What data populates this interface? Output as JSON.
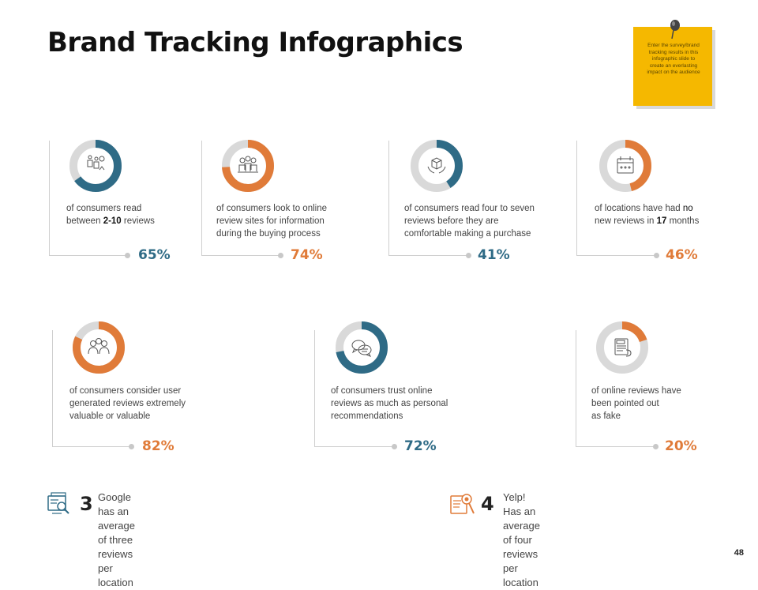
{
  "title": "Brand Tracking Infographics",
  "note": {
    "text": "Enter the survey/brand tracking results in this infographic slide to create an everlasting impact on the audience"
  },
  "colors": {
    "blue": "#2f6b86",
    "orange": "#e07b39",
    "track": "#d9d9d9"
  },
  "stats": [
    {
      "percent": "65%",
      "value": 65,
      "color": "blue",
      "icon": "people-review-icon",
      "lines": [
        [
          "of consumers read",
          ""
        ],
        [
          "between ",
          "2-10",
          " reviews"
        ]
      ]
    },
    {
      "percent": "74%",
      "value": 74,
      "color": "orange",
      "icon": "group-meeting-icon",
      "lines": [
        "of consumers look to online",
        "review  sites for information",
        "during the buying process"
      ]
    },
    {
      "percent": "41%",
      "value": 41,
      "color": "blue",
      "icon": "box-hands-icon",
      "lines": [
        "of consumers read four to seven",
        "reviews  before they are",
        "comfortable  making a purchase"
      ]
    },
    {
      "percent": "46%",
      "value": 46,
      "color": "orange",
      "icon": "calendar-icon",
      "lines": [
        [
          "of locations have had ",
          "no"
        ],
        [
          "new reviews  in ",
          "17",
          " months"
        ]
      ]
    },
    {
      "percent": "82%",
      "value": 82,
      "color": "orange",
      "icon": "users-group-icon",
      "lines": [
        "of consumers consider user",
        "generated reviews  extremely",
        "valuable  or valuable"
      ]
    },
    {
      "percent": "72%",
      "value": 72,
      "color": "blue",
      "icon": "chat-bubbles-icon",
      "lines": [
        "of consumers trust online",
        "reviews  as much as personal",
        "recommendations"
      ]
    },
    {
      "percent": "20%",
      "value": 20,
      "color": "orange",
      "icon": "fake-document-icon",
      "lines": [
        "of online reviews have",
        "been pointed out",
        "as fake"
      ]
    }
  ],
  "footer": {
    "google": {
      "number": "3",
      "line1": "Google has an average of three reviews",
      "line2": "per location"
    },
    "yelp": {
      "number": "4",
      "line1": "Yelp! Has an average of four reviews",
      "line2": "per location"
    }
  },
  "page_number": "48"
}
